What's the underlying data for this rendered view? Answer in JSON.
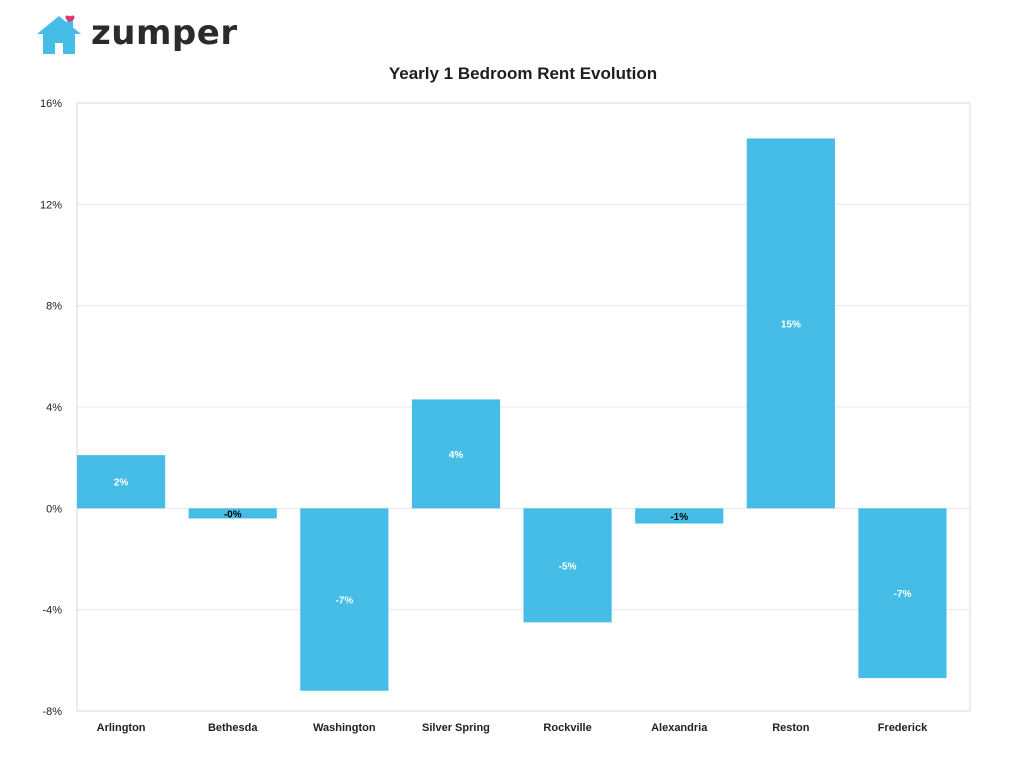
{
  "brand": {
    "name": "zumper",
    "logo_icon": "house-heart-icon",
    "logo_color": "#45bde6",
    "heart_color": "#e8336d"
  },
  "colors": {
    "bar": "#45bde6",
    "grid": "#e8e8e8",
    "frame": "#d9d9d9",
    "label_inside": "#ffffff",
    "label_outside": "#000000"
  },
  "chart_data": {
    "type": "bar",
    "title": "Yearly 1 Bedroom Rent Evolution",
    "xlabel": "",
    "ylabel": "",
    "categories": [
      "Arlington",
      "Bethesda",
      "Washington",
      "Silver Spring",
      "Rockville",
      "Alexandria",
      "Reston",
      "Frederick"
    ],
    "values": [
      2.1,
      -0.4,
      -7.2,
      4.3,
      -4.5,
      -0.6,
      14.6,
      -6.7
    ],
    "data_labels": [
      "2%",
      "-0%",
      "-7%",
      "4%",
      "-5%",
      "-1%",
      "15%",
      "-7%"
    ],
    "ylim": [
      -8,
      16
    ],
    "yticks": [
      16,
      12,
      8,
      4,
      0,
      -4,
      -8
    ],
    "ytick_labels": [
      "16%",
      "12%",
      "8%",
      "4%",
      "0%",
      "-4%",
      "-8%"
    ],
    "grid": true,
    "legend": "none"
  }
}
